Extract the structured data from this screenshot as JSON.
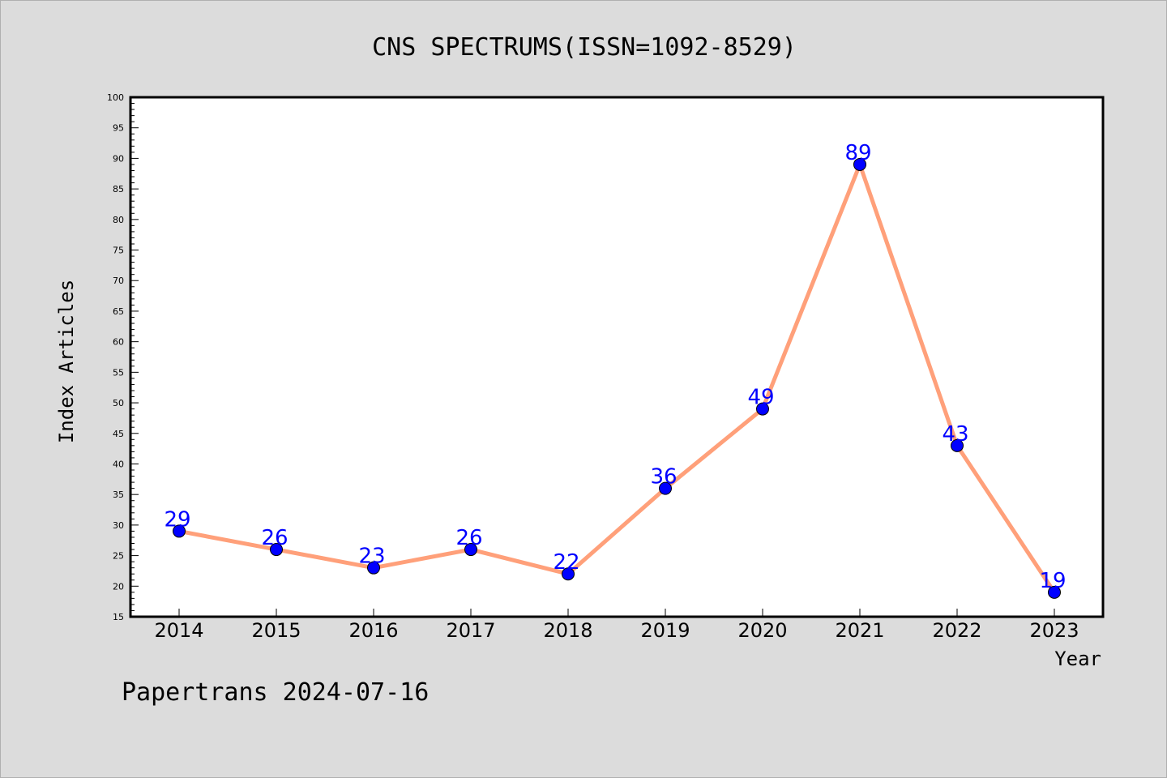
{
  "chart_data": {
    "type": "line",
    "title": "CNS SPECTRUMS(ISSN=1092-8529)",
    "xlabel": "Year",
    "ylabel": "Index Articles",
    "categories": [
      "2014",
      "2015",
      "2016",
      "2017",
      "2018",
      "2019",
      "2020",
      "2021",
      "2022",
      "2023"
    ],
    "series": [
      {
        "values": [
          29,
          26,
          23,
          26,
          22,
          36,
          49,
          89,
          43,
          19
        ]
      }
    ],
    "ylim": [
      15,
      100
    ],
    "yticks": [
      15,
      20,
      25,
      30,
      35,
      40,
      45,
      50,
      55,
      60,
      65,
      70,
      75,
      80,
      85,
      90,
      95,
      100
    ],
    "grid": false,
    "legend": "none",
    "data_labels": true
  },
  "footer": {
    "text": "Papertrans 2024-07-16"
  },
  "colors": {
    "background": "#dcdcdc",
    "plot_background": "#ffffff",
    "line": "#ffa07a",
    "marker": "#0000ff",
    "data_label": "#0000ff"
  }
}
